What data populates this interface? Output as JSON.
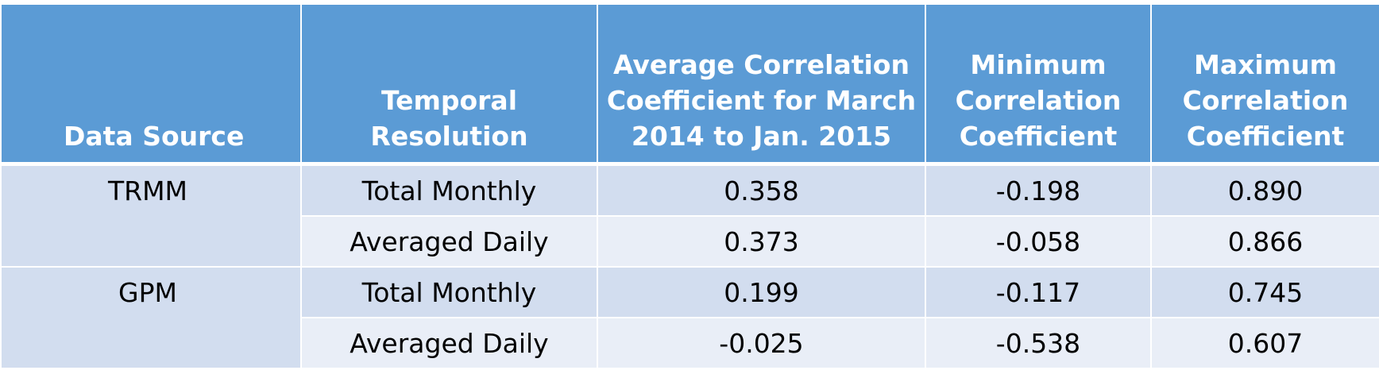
{
  "table": {
    "headers": [
      "Data Source",
      "Temporal Resolution",
      "Average Correlation Coefficient for March 2014 to Jan. 2015",
      "Minimum Correlation Coefficient",
      "Maximum Correlation Coefficient"
    ],
    "groups": [
      {
        "source": "TRMM",
        "rows": [
          {
            "resolution": "Total Monthly",
            "average": "0.358",
            "minimum": "-0.198",
            "maximum": "0.890"
          },
          {
            "resolution": "Averaged Daily",
            "average": "0.373",
            "minimum": "-0.058",
            "maximum": "0.866"
          }
        ]
      },
      {
        "source": "GPM",
        "rows": [
          {
            "resolution": "Total Monthly",
            "average": "0.199",
            "minimum": "-0.117",
            "maximum": "0.745"
          },
          {
            "resolution": "Averaged Daily",
            "average": "-0.025",
            "minimum": "-0.538",
            "maximum": "0.607"
          }
        ]
      }
    ],
    "colors": {
      "header_bg": "#5b9bd5",
      "row_band_dark": "#d2ddef",
      "row_band_light": "#e9eef7"
    }
  }
}
